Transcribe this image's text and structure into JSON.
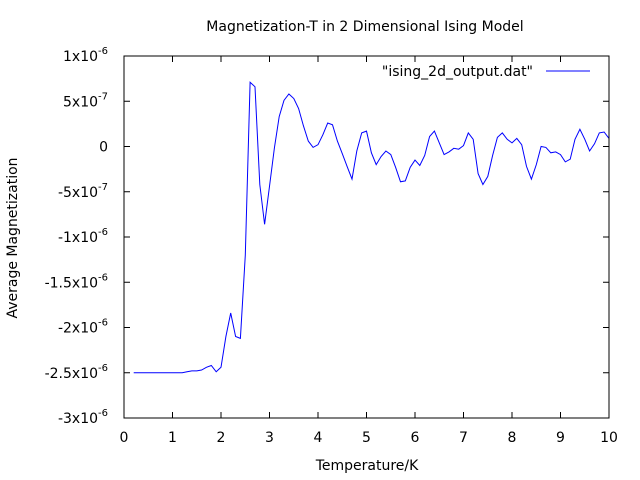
{
  "chart_data": {
    "type": "line",
    "title": "Magnetization-T in 2 Dimensional Ising Model",
    "xlabel": "Temperature/K",
    "ylabel": "Average Magnetization",
    "xlim": [
      0,
      10
    ],
    "ylim": [
      -3e-06,
      1e-06
    ],
    "grid": false,
    "legend_position": "top-right",
    "x_ticks": [
      {
        "value": 0,
        "label": "0"
      },
      {
        "value": 1,
        "label": "1"
      },
      {
        "value": 2,
        "label": "2"
      },
      {
        "value": 3,
        "label": "3"
      },
      {
        "value": 4,
        "label": "4"
      },
      {
        "value": 5,
        "label": "5"
      },
      {
        "value": 6,
        "label": "6"
      },
      {
        "value": 7,
        "label": "7"
      },
      {
        "value": 8,
        "label": "8"
      },
      {
        "value": 9,
        "label": "9"
      },
      {
        "value": 10,
        "label": "10"
      }
    ],
    "y_ticks": [
      {
        "value": 1e-06,
        "mantissa": "1x10",
        "exponent": "-6"
      },
      {
        "value": 5e-07,
        "mantissa": "5x10",
        "exponent": "-7"
      },
      {
        "value": 0,
        "mantissa": "0",
        "exponent": ""
      },
      {
        "value": -5e-07,
        "mantissa": "-5x10",
        "exponent": "-7"
      },
      {
        "value": -1e-06,
        "mantissa": "-1x10",
        "exponent": "-6"
      },
      {
        "value": -1.5e-06,
        "mantissa": "-1.5x10",
        "exponent": "-6"
      },
      {
        "value": -2e-06,
        "mantissa": "-2x10",
        "exponent": "-6"
      },
      {
        "value": -2.5e-06,
        "mantissa": "-2.5x10",
        "exponent": "-6"
      },
      {
        "value": -3e-06,
        "mantissa": "-3x10",
        "exponent": "-6"
      }
    ],
    "series": [
      {
        "name": "\"ising_2d_output.dat\"",
        "color": "#0000ff",
        "x": [
          0.2,
          0.3,
          0.4,
          0.5,
          0.6,
          0.7,
          0.8,
          0.9,
          1.0,
          1.1,
          1.2,
          1.3,
          1.4,
          1.5,
          1.6,
          1.7,
          1.8,
          1.9,
          2.0,
          2.1,
          2.2,
          2.3,
          2.4,
          2.5,
          2.6,
          2.7,
          2.8,
          2.9,
          3.0,
          3.1,
          3.2,
          3.3,
          3.4,
          3.5,
          3.6,
          3.7,
          3.8,
          3.9,
          4.0,
          4.1,
          4.2,
          4.3,
          4.4,
          4.5,
          4.6,
          4.7,
          4.8,
          4.9,
          5.0,
          5.1,
          5.2,
          5.3,
          5.4,
          5.5,
          5.6,
          5.7,
          5.8,
          5.9,
          6.0,
          6.1,
          6.2,
          6.3,
          6.4,
          6.5,
          6.6,
          6.7,
          6.8,
          6.9,
          7.0,
          7.1,
          7.2,
          7.3,
          7.4,
          7.5,
          7.6,
          7.7,
          7.8,
          7.9,
          8.0,
          8.1,
          8.2,
          8.3,
          8.4,
          8.5,
          8.6,
          8.7,
          8.8,
          8.9,
          9.0,
          9.1,
          9.2,
          9.3,
          9.4,
          9.5,
          9.6,
          9.7,
          9.8,
          9.9,
          10.0
        ],
        "y": [
          -2.5e-06,
          -2.5e-06,
          -2.5e-06,
          -2.5e-06,
          -2.5e-06,
          -2.5e-06,
          -2.5e-06,
          -2.5e-06,
          -2.5e-06,
          -2.5e-06,
          -2.5e-06,
          -2.49e-06,
          -2.48e-06,
          -2.48e-06,
          -2.47e-06,
          -2.44e-06,
          -2.42e-06,
          -2.49e-06,
          -2.44e-06,
          -2.1e-06,
          -1.84e-06,
          -2.1e-06,
          -2.12e-06,
          -1.2e-06,
          7.1e-07,
          6.6e-07,
          -4.2e-07,
          -8.6e-07,
          -4.4e-07,
          -1.5e-08,
          3.3e-07,
          5.1e-07,
          5.8e-07,
          5.3e-07,
          4.2e-07,
          2.3e-07,
          6e-08,
          -1e-08,
          2e-08,
          1.3e-07,
          2.6e-07,
          2.4e-07,
          6e-08,
          -8e-08,
          -2.2e-07,
          -3.6e-07,
          -5e-08,
          1.5e-07,
          1.7e-07,
          -7e-08,
          -2e-07,
          -1.1e-07,
          -5e-08,
          -9e-08,
          -2.3e-07,
          -3.9e-07,
          -3.8e-07,
          -2.3e-07,
          -1.5e-07,
          -2.1e-07,
          -1e-07,
          1.1e-07,
          1.7e-07,
          4e-08,
          -9e-08,
          -6e-08,
          -2e-08,
          -3e-08,
          1e-08,
          1.5e-07,
          8e-08,
          -3e-07,
          -4.2e-07,
          -3.3e-07,
          -1e-07,
          1e-07,
          1.5e-07,
          8e-08,
          4e-08,
          9e-08,
          2e-08,
          -2.2e-07,
          -3.6e-07,
          -2e-07,
          0.0,
          -1e-08,
          -7e-08,
          -6e-08,
          -9e-08,
          -1.7e-07,
          -1.4e-07,
          8e-08,
          1.9e-07,
          8e-08,
          -5e-08,
          3e-08,
          1.5e-07,
          1.6e-07,
          9e-08
        ]
      }
    ]
  }
}
